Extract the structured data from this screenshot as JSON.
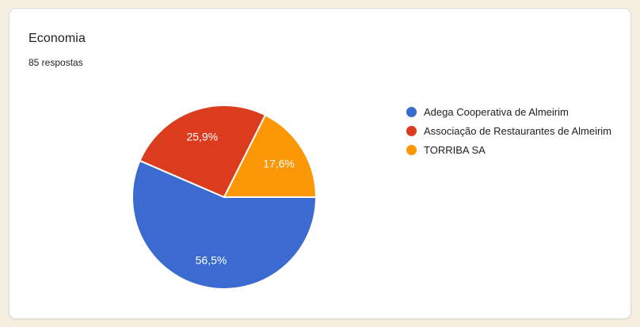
{
  "colors": {
    "page_background": "#F7EFDF",
    "card_background": "#FFFFFF",
    "card_border": "#DADCE0",
    "text_primary": "#202124",
    "slice_label_text": "#FFFFFF"
  },
  "chart_data": {
    "type": "pie",
    "title": "Economia",
    "subtitle": "85 respostas",
    "legend_position": "right",
    "start_angle": "east",
    "direction": "clockwise",
    "slices": [
      {
        "label": "Adega Cooperativa de Almeirim",
        "percent": 56.5,
        "percent_label": "56,5%",
        "color": "#3B6BD1"
      },
      {
        "label": "Associação de Restaurantes de Almeirim",
        "percent": 25.9,
        "percent_label": "25,9%",
        "color": "#DB3C1D"
      },
      {
        "label": "TORRIBA SA",
        "percent": 17.6,
        "percent_label": "17,6%",
        "color": "#FC9705"
      }
    ]
  }
}
